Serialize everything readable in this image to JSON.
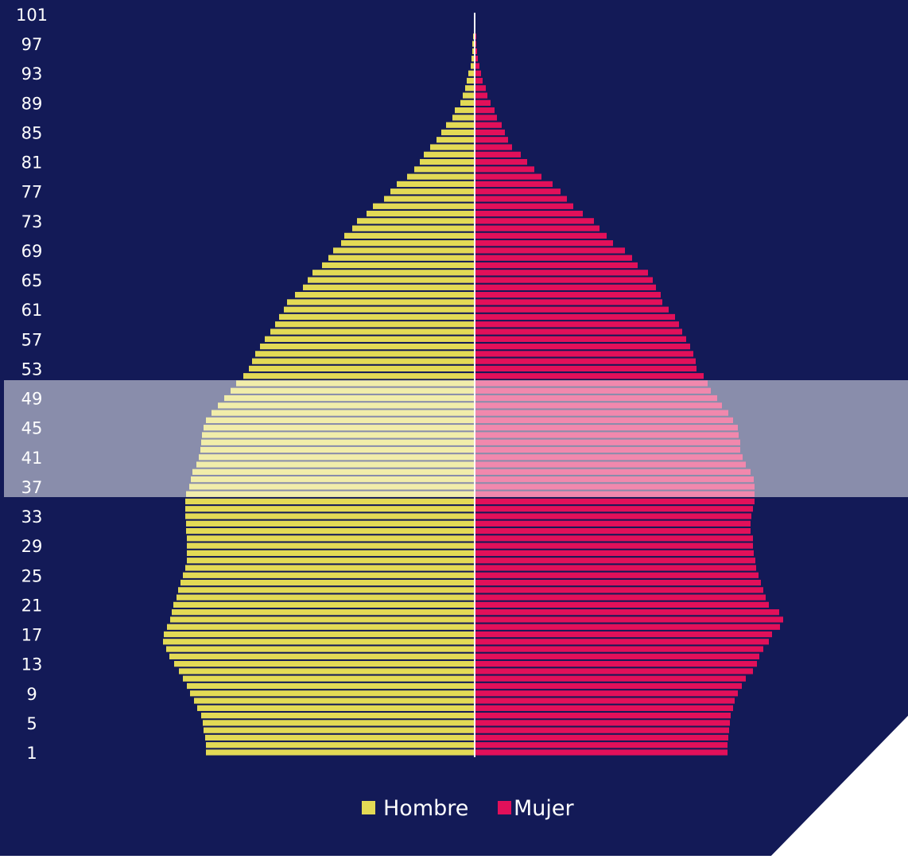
{
  "colors": {
    "background": "#131a57",
    "male": "#e3da55",
    "female": "#e2105a",
    "highlight": "#ffffff",
    "axis_line": "#ffffff",
    "label_text": "#ffffff"
  },
  "chart_data": {
    "type": "bar",
    "orientation": "horizontal-population-pyramid",
    "title": "",
    "xlabel": "",
    "ylabel": "",
    "tick_labels": [
      1,
      5,
      9,
      13,
      17,
      21,
      25,
      29,
      33,
      37,
      41,
      45,
      49,
      53,
      57,
      61,
      65,
      69,
      73,
      77,
      81,
      85,
      89,
      93,
      97,
      101
    ],
    "age_start": 1,
    "age_end": 101,
    "highlight_range": [
      36,
      51
    ],
    "legend": [
      {
        "key": "male",
        "label": "Hombre"
      },
      {
        "key": "female",
        "label": "Mujer"
      }
    ],
    "legend_placement": "bottom-center",
    "grid": false,
    "series": [
      {
        "name": "Hombre",
        "values": [
          338,
          338,
          339,
          341,
          342,
          344,
          349,
          353,
          358,
          362,
          367,
          372,
          378,
          384,
          388,
          392,
          391,
          387,
          383,
          381,
          379,
          375,
          373,
          370,
          367,
          364,
          362,
          362,
          362,
          362,
          363,
          363,
          364,
          364,
          364,
          363,
          359,
          357,
          355,
          350,
          347,
          345,
          344,
          343,
          341,
          338,
          331,
          323,
          315,
          307,
          300,
          291,
          284,
          280,
          276,
          270,
          264,
          257,
          251,
          246,
          240,
          236,
          226,
          216,
          210,
          204,
          192,
          184,
          178,
          168,
          164,
          154,
          148,
          136,
          128,
          114,
          106,
          98,
          85,
          76,
          69,
          64,
          56,
          48,
          42,
          36,
          28,
          25,
          18,
          15,
          12,
          10,
          8,
          5,
          4,
          3,
          3,
          2,
          1,
          1,
          0
        ]
      },
      {
        "name": "Mujer",
        "values": [
          318,
          318,
          319,
          320,
          321,
          322,
          325,
          327,
          331,
          336,
          341,
          350,
          355,
          358,
          363,
          370,
          374,
          384,
          388,
          383,
          370,
          366,
          363,
          360,
          357,
          354,
          353,
          351,
          350,
          350,
          347,
          347,
          348,
          350,
          352,
          352,
          352,
          351,
          347,
          341,
          337,
          334,
          334,
          332,
          331,
          325,
          319,
          311,
          305,
          297,
          293,
          288,
          279,
          278,
          275,
          271,
          266,
          261,
          257,
          252,
          244,
          236,
          234,
          228,
          224,
          218,
          205,
          198,
          189,
          174,
          166,
          157,
          150,
          136,
          124,
          116,
          108,
          98,
          84,
          75,
          66,
          58,
          47,
          42,
          38,
          34,
          28,
          25,
          20,
          16,
          14,
          10,
          8,
          6,
          4,
          3,
          2,
          2,
          1,
          1,
          0
        ]
      }
    ]
  }
}
